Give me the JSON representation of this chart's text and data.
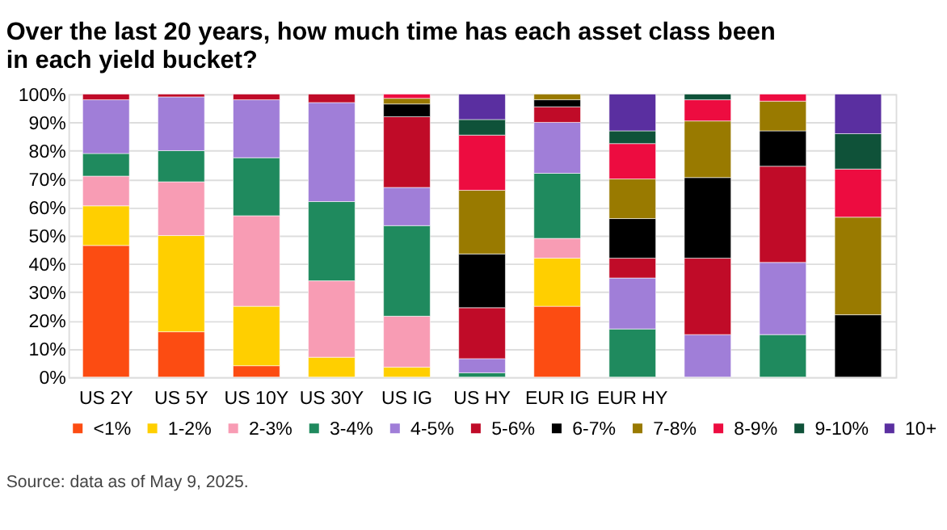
{
  "chart_data": {
    "type": "bar",
    "stacked": true,
    "title": "Over the last 20 years, how much time has each asset class been in each yield bucket?",
    "categories": [
      "US 2Y",
      "US 5Y",
      "US 10Y",
      "US 30Y",
      "US IG",
      "US HY",
      "EUR IG",
      "EUR HY",
      null,
      null,
      null
    ],
    "series": [
      {
        "name": "<1%",
        "color": "#fc4c12",
        "values": [
          46.5,
          16,
          4,
          null,
          null,
          null,
          25,
          null,
          null,
          null,
          null
        ]
      },
      {
        "name": "1-2%",
        "color": "#ffcf00",
        "values": [
          14,
          34,
          21,
          7,
          3.5,
          null,
          17,
          null,
          null,
          null,
          null
        ]
      },
      {
        "name": "2-3%",
        "color": "#f89cb4",
        "values": [
          10.5,
          19,
          32,
          27,
          18,
          null,
          7,
          null,
          null,
          null,
          null
        ]
      },
      {
        "name": "3-4%",
        "color": "#1f8a5e",
        "values": [
          8,
          11,
          20.5,
          28,
          32,
          1.5,
          23,
          17,
          null,
          15,
          null
        ]
      },
      {
        "name": "4-5%",
        "color": "#a07ed8",
        "values": [
          19,
          19,
          20.5,
          35,
          13.5,
          5,
          18,
          18,
          15,
          25.5,
          null
        ]
      },
      {
        "name": "5-6%",
        "color": "#c00b28",
        "values": [
          2,
          1,
          2,
          3,
          25,
          18,
          5.5,
          7,
          27,
          34,
          null
        ]
      },
      {
        "name": "6-7%",
        "color": "#000000",
        "values": [
          null,
          null,
          null,
          null,
          4.5,
          19,
          2.5,
          14,
          28.5,
          12.5,
          22
        ]
      },
      {
        "name": "7-8%",
        "color": "#997a00",
        "values": [
          null,
          null,
          null,
          null,
          2,
          22.5,
          2,
          14,
          20,
          10.5,
          34.5
        ]
      },
      {
        "name": "8-9%",
        "color": "#ed0c40",
        "values": [
          null,
          null,
          null,
          null,
          1.5,
          19.5,
          null,
          12.5,
          7.5,
          2.5,
          17
        ]
      },
      {
        "name": "9-10%",
        "color": "#0f5239",
        "values": [
          null,
          null,
          null,
          null,
          null,
          5.5,
          null,
          4.5,
          2,
          null,
          12.5
        ]
      },
      {
        "name": "10+",
        "color": "#5a2fa0",
        "values": [
          null,
          null,
          null,
          null,
          null,
          9,
          null,
          13,
          null,
          null,
          14
        ]
      }
    ],
    "ylim": [
      0,
      100
    ],
    "yticks": [
      {
        "value": 0,
        "label": "0%"
      },
      {
        "value": 10,
        "label": "10%"
      },
      {
        "value": 20,
        "label": "20%"
      },
      {
        "value": 30,
        "label": "30%"
      },
      {
        "value": 40,
        "label": "40%"
      },
      {
        "value": 50,
        "label": "50%"
      },
      {
        "value": 60,
        "label": "60%"
      },
      {
        "value": 70,
        "label": "70%"
      },
      {
        "value": 80,
        "label": "80%"
      },
      {
        "value": 90,
        "label": "90%"
      },
      {
        "value": 100,
        "label": "100%"
      }
    ],
    "grid": "y",
    "legend": "bottom",
    "annotations": [
      "Source: data as of May 9, 2025."
    ]
  }
}
